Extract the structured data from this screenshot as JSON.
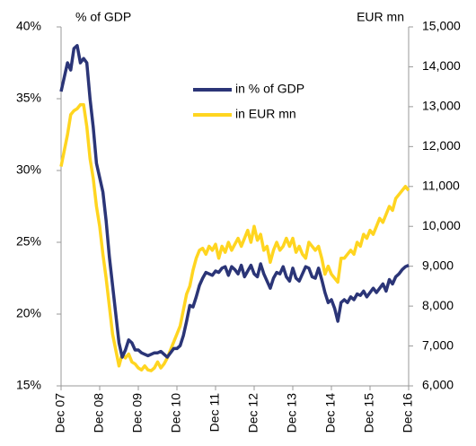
{
  "chart_data": {
    "type": "line",
    "y_label": "% of GDP",
    "y2_label": "EUR mn",
    "categories": [
      "Dec 07",
      null,
      null,
      null,
      null,
      null,
      null,
      null,
      null,
      null,
      null,
      null,
      "Dec 08",
      null,
      null,
      null,
      null,
      null,
      null,
      null,
      null,
      null,
      null,
      null,
      "Dec 09",
      null,
      null,
      null,
      null,
      null,
      null,
      null,
      null,
      null,
      null,
      null,
      "Dec 10",
      null,
      null,
      null,
      null,
      null,
      null,
      null,
      null,
      null,
      null,
      null,
      "Dec 11",
      null,
      null,
      null,
      null,
      null,
      null,
      null,
      null,
      null,
      null,
      null,
      "Dec 12",
      null,
      null,
      null,
      null,
      null,
      null,
      null,
      null,
      null,
      null,
      null,
      "Dec 13",
      null,
      null,
      null,
      null,
      null,
      null,
      null,
      null,
      null,
      null,
      null,
      "Dec 14",
      null,
      null,
      null,
      null,
      null,
      null,
      null,
      null,
      null,
      null,
      null,
      "Dec 15",
      null,
      null,
      null,
      null,
      null,
      null,
      null,
      null,
      null,
      null,
      null,
      "Dec 16"
    ],
    "series": [
      {
        "name": "in % of GDP",
        "color": "#2b3577",
        "values": [
          35.5,
          36.5,
          37.5,
          37,
          38.5,
          38.7,
          37.5,
          37.8,
          37.5,
          35,
          33,
          30.5,
          29.5,
          28.5,
          26.5,
          24,
          22,
          20,
          18,
          17,
          17.5,
          18.2,
          18,
          17.5,
          17.5,
          17.3,
          17.2,
          17.1,
          17.2,
          17.3,
          17.3,
          17.4,
          17.2,
          17,
          17.3,
          17.6,
          17.6,
          17.8,
          18.5,
          19.5,
          20.6,
          20.5,
          21.2,
          22,
          22.5,
          22.9,
          22.8,
          22.7,
          23,
          22.9,
          23.2,
          23.3,
          22.7,
          23.3,
          23.1,
          22.8,
          23.4,
          22.6,
          23,
          23.4,
          22.8,
          22.6,
          23.5,
          22.8,
          22.3,
          21.8,
          22.5,
          22.9,
          22.8,
          23.3,
          22.6,
          22.3,
          23.2,
          22.5,
          22.3,
          22.8,
          23.3,
          23.2,
          22.6,
          22.5,
          23.2,
          22.4,
          21.5,
          20.8,
          21,
          20.4,
          19.5,
          20.8,
          21,
          20.8,
          21.2,
          21,
          21.4,
          21.3,
          21.6,
          21.2,
          21.5,
          21.8,
          21.5,
          21.8,
          22.1,
          21.6,
          22.4,
          22.1,
          22.6,
          22.8,
          23.1,
          23.3,
          23.4
        ]
      },
      {
        "name": "in EUR mn",
        "color": "#ffd520",
        "axis": "y2",
        "values": [
          11500,
          11900,
          12300,
          12800,
          12900,
          12950,
          13050,
          13050,
          12500,
          11700,
          11200,
          10500,
          10000,
          9300,
          8700,
          8000,
          7300,
          6900,
          6500,
          6800,
          6700,
          6800,
          6600,
          6550,
          6450,
          6400,
          6500,
          6400,
          6380,
          6450,
          6600,
          6450,
          6550,
          6700,
          6900,
          7100,
          7300,
          7500,
          7900,
          8300,
          8500,
          8900,
          9200,
          9400,
          9450,
          9300,
          9500,
          9400,
          9550,
          9200,
          9500,
          9350,
          9600,
          9400,
          9550,
          9700,
          9500,
          9700,
          9900,
          9600,
          10000,
          9650,
          9800,
          9400,
          9500,
          9100,
          9400,
          9600,
          9400,
          9500,
          9700,
          9500,
          9700,
          9350,
          9500,
          9300,
          9200,
          9600,
          9500,
          9400,
          9500,
          9200,
          8800,
          9000,
          8800,
          8700,
          8600,
          9200,
          9200,
          9300,
          9400,
          9300,
          9600,
          9500,
          9800,
          9700,
          9900,
          9800,
          10000,
          10200,
          10100,
          10300,
          10500,
          10400,
          10700,
          10800,
          10900,
          11000,
          10900
        ]
      }
    ],
    "ylim": [
      15,
      40
    ],
    "yticks": [
      {
        "value": 15,
        "label": "15%"
      },
      {
        "value": 20,
        "label": "20%"
      },
      {
        "value": 25,
        "label": "25%"
      },
      {
        "value": 30,
        "label": "30%"
      },
      {
        "value": 35,
        "label": "35%"
      },
      {
        "value": 40,
        "label": "40%"
      }
    ],
    "y2lim": [
      6000,
      15000
    ],
    "y2ticks": [
      {
        "value": 6000,
        "label": "6,000"
      },
      {
        "value": 7000,
        "label": "7,000"
      },
      {
        "value": 8000,
        "label": "8,000"
      },
      {
        "value": 9000,
        "label": "9,000"
      },
      {
        "value": 10000,
        "label": "10,000"
      },
      {
        "value": 11000,
        "label": "11,000"
      },
      {
        "value": 12000,
        "label": "12,000"
      },
      {
        "value": 13000,
        "label": "13,000"
      },
      {
        "value": 14000,
        "label": "14,000"
      },
      {
        "value": 15000,
        "label": "15,000"
      }
    ]
  }
}
